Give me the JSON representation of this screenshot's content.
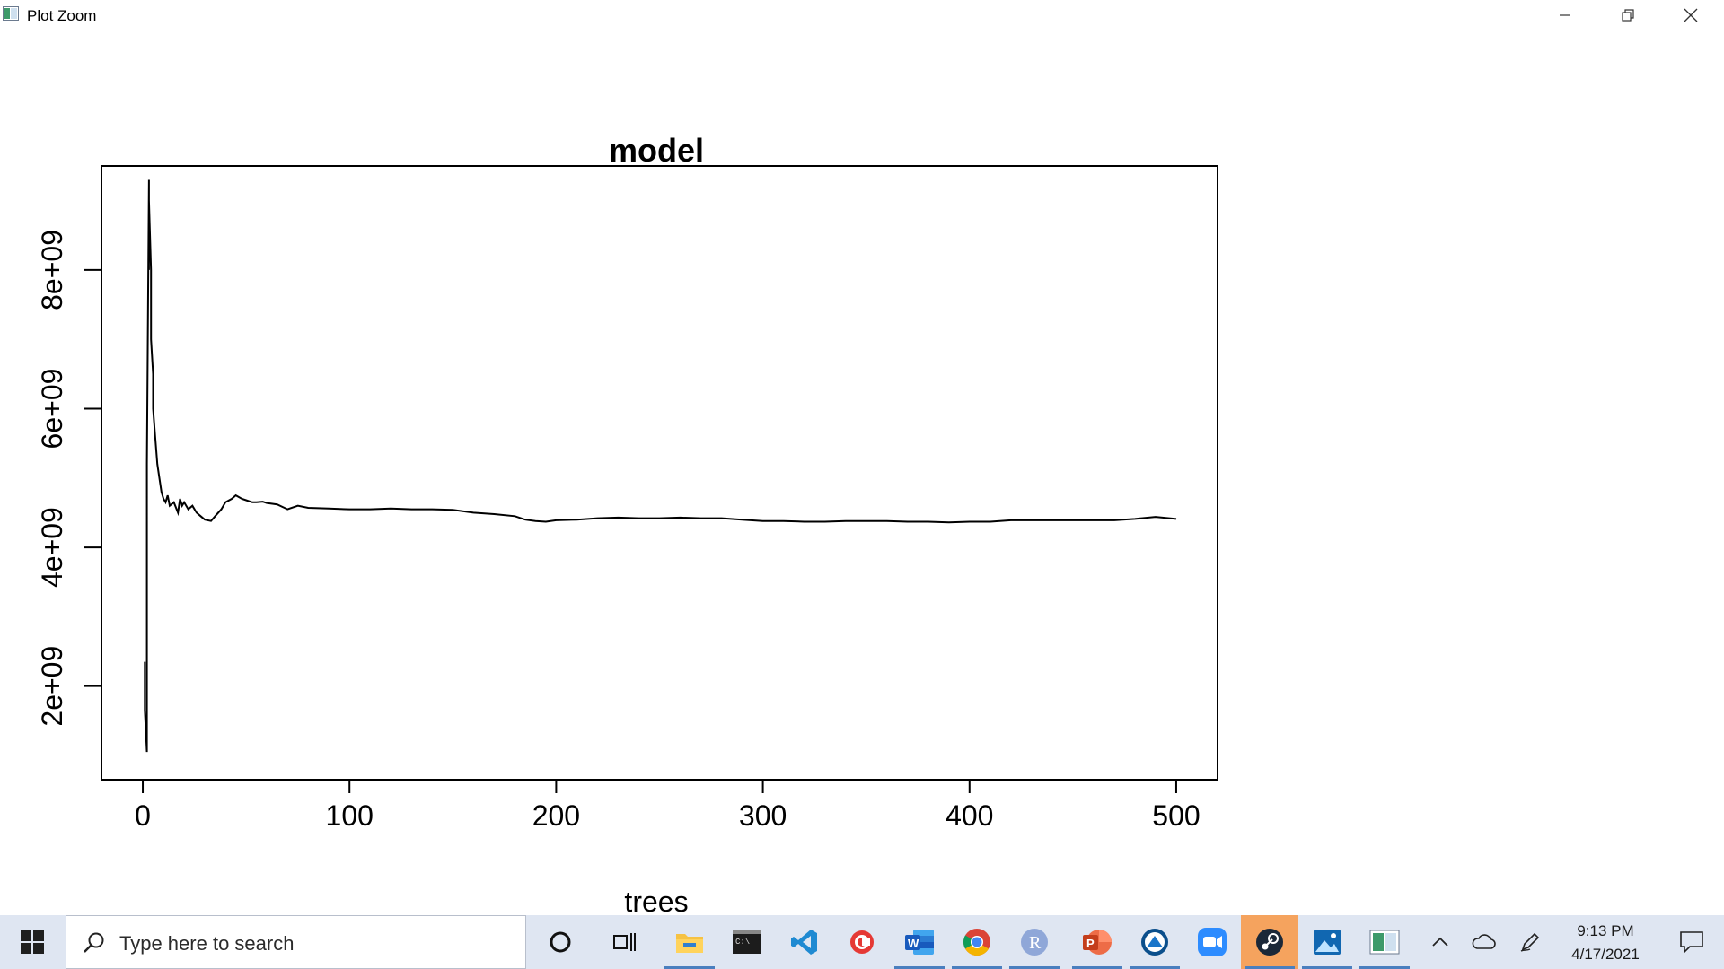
{
  "window": {
    "title": "Plot Zoom",
    "controls": {
      "minimize": "minimize-icon",
      "restore": "restore-icon",
      "close": "close-icon"
    }
  },
  "chart_data": {
    "type": "line",
    "title": "model",
    "xlabel": "trees",
    "ylabel": "",
    "xlim": [
      -20,
      520
    ],
    "ylim": [
      650000000,
      9500000000
    ],
    "xticks": [
      0,
      100,
      200,
      300,
      400,
      500
    ],
    "xtick_labels": [
      "0",
      "100",
      "200",
      "300",
      "400",
      "500"
    ],
    "yticks": [
      2000000000,
      4000000000,
      6000000000,
      8000000000
    ],
    "ytick_labels": [
      "2e+09",
      "4e+09",
      "6e+09",
      "8e+09"
    ],
    "grid": false,
    "series": [
      {
        "x": [
          1,
          1,
          1,
          2,
          2,
          3,
          3,
          3,
          4,
          4,
          5,
          5,
          6,
          7,
          8,
          9,
          10,
          11,
          12,
          13,
          15,
          17,
          18,
          19,
          20,
          22,
          24,
          26,
          28,
          30,
          33,
          35,
          38,
          40,
          43,
          45,
          48,
          50,
          53,
          55,
          58,
          60,
          65,
          70,
          75,
          80,
          90,
          100,
          110,
          120,
          130,
          140,
          150,
          160,
          170,
          180,
          185,
          190,
          195,
          200,
          210,
          220,
          230,
          240,
          250,
          260,
          270,
          280,
          290,
          300,
          310,
          320,
          330,
          340,
          350,
          360,
          370,
          380,
          390,
          400,
          410,
          420,
          430,
          440,
          450,
          460,
          470,
          480,
          490,
          500
        ],
        "y": [
          1700000000,
          2350000000,
          1650000000,
          1050000000,
          5200000000,
          9300000000,
          8000000000,
          9000000000,
          8000000000,
          7000000000,
          6500000000,
          6000000000,
          5600000000,
          5200000000,
          5000000000,
          4800000000,
          4700000000,
          4650000000,
          4750000000,
          4600000000,
          4650000000,
          4500000000,
          4700000000,
          4600000000,
          4650000000,
          4550000000,
          4600000000,
          4500000000,
          4450000000,
          4400000000,
          4380000000,
          4450000000,
          4550000000,
          4650000000,
          4700000000,
          4750000000,
          4700000000,
          4680000000,
          4650000000,
          4650000000,
          4660000000,
          4640000000,
          4620000000,
          4550000000,
          4600000000,
          4570000000,
          4560000000,
          4550000000,
          4550000000,
          4560000000,
          4550000000,
          4550000000,
          4540000000,
          4500000000,
          4480000000,
          4450000000,
          4400000000,
          4380000000,
          4370000000,
          4390000000,
          4400000000,
          4420000000,
          4430000000,
          4420000000,
          4420000000,
          4430000000,
          4420000000,
          4420000000,
          4400000000,
          4380000000,
          4380000000,
          4370000000,
          4370000000,
          4380000000,
          4380000000,
          4380000000,
          4370000000,
          4370000000,
          4360000000,
          4370000000,
          4370000000,
          4390000000,
          4390000000,
          4390000000,
          4390000000,
          4390000000,
          4390000000,
          4410000000,
          4440000000,
          4410000000
        ]
      }
    ]
  },
  "taskbar": {
    "search_placeholder": "Type here to search",
    "apps": [
      "cortana-icon",
      "task-view-icon",
      "file-explorer-icon",
      "terminal-icon",
      "vscode-icon",
      "app-c-icon",
      "word-icon",
      "chrome-icon",
      "r-icon",
      "powerpoint-icon",
      "app-ring-icon",
      "zoom-icon",
      "steam-icon",
      "photos-icon",
      "rgui-icon"
    ],
    "clock_time": "9:13 PM",
    "clock_date": "4/17/2021"
  }
}
